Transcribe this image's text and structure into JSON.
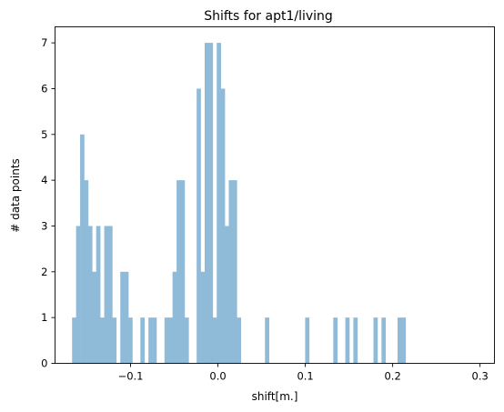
{
  "chart_data": {
    "type": "bar",
    "title": "Shifts for apt1/living",
    "xlabel": "shift[m.]",
    "ylabel": "# data points",
    "xlim": [
      -0.1865,
      0.3165
    ],
    "ylim": [
      0,
      7.35
    ],
    "xticks": [
      -0.1,
      0.0,
      0.1,
      0.2,
      0.3
    ],
    "xtick_labels": [
      "−0.1",
      "0.0",
      "0.1",
      "0.2",
      "0.3"
    ],
    "yticks": [
      0,
      1,
      2,
      3,
      4,
      5,
      6,
      7
    ],
    "ytick_labels": [
      "0",
      "1",
      "2",
      "3",
      "4",
      "5",
      "6",
      "7"
    ],
    "bin_start": -0.167,
    "bin_width": 0.0046,
    "bar_color": "#8fbbd9",
    "grid": false,
    "values": [
      1,
      3,
      5,
      4,
      3,
      2,
      3,
      1,
      3,
      3,
      1,
      0,
      2,
      2,
      1,
      0,
      0,
      1,
      0,
      1,
      1,
      0,
      0,
      1,
      1,
      2,
      4,
      4,
      1,
      0,
      0,
      6,
      2,
      7,
      7,
      1,
      7,
      6,
      3,
      4,
      4,
      1,
      0,
      0,
      0,
      0,
      0,
      0,
      1,
      0,
      0,
      0,
      0,
      0,
      0,
      0,
      0,
      0,
      1,
      0,
      0,
      0,
      0,
      0,
      0,
      1,
      0,
      0,
      1,
      0,
      1,
      0,
      0,
      0,
      0,
      1,
      0,
      1,
      0,
      0,
      0,
      1,
      1,
      0
    ]
  }
}
